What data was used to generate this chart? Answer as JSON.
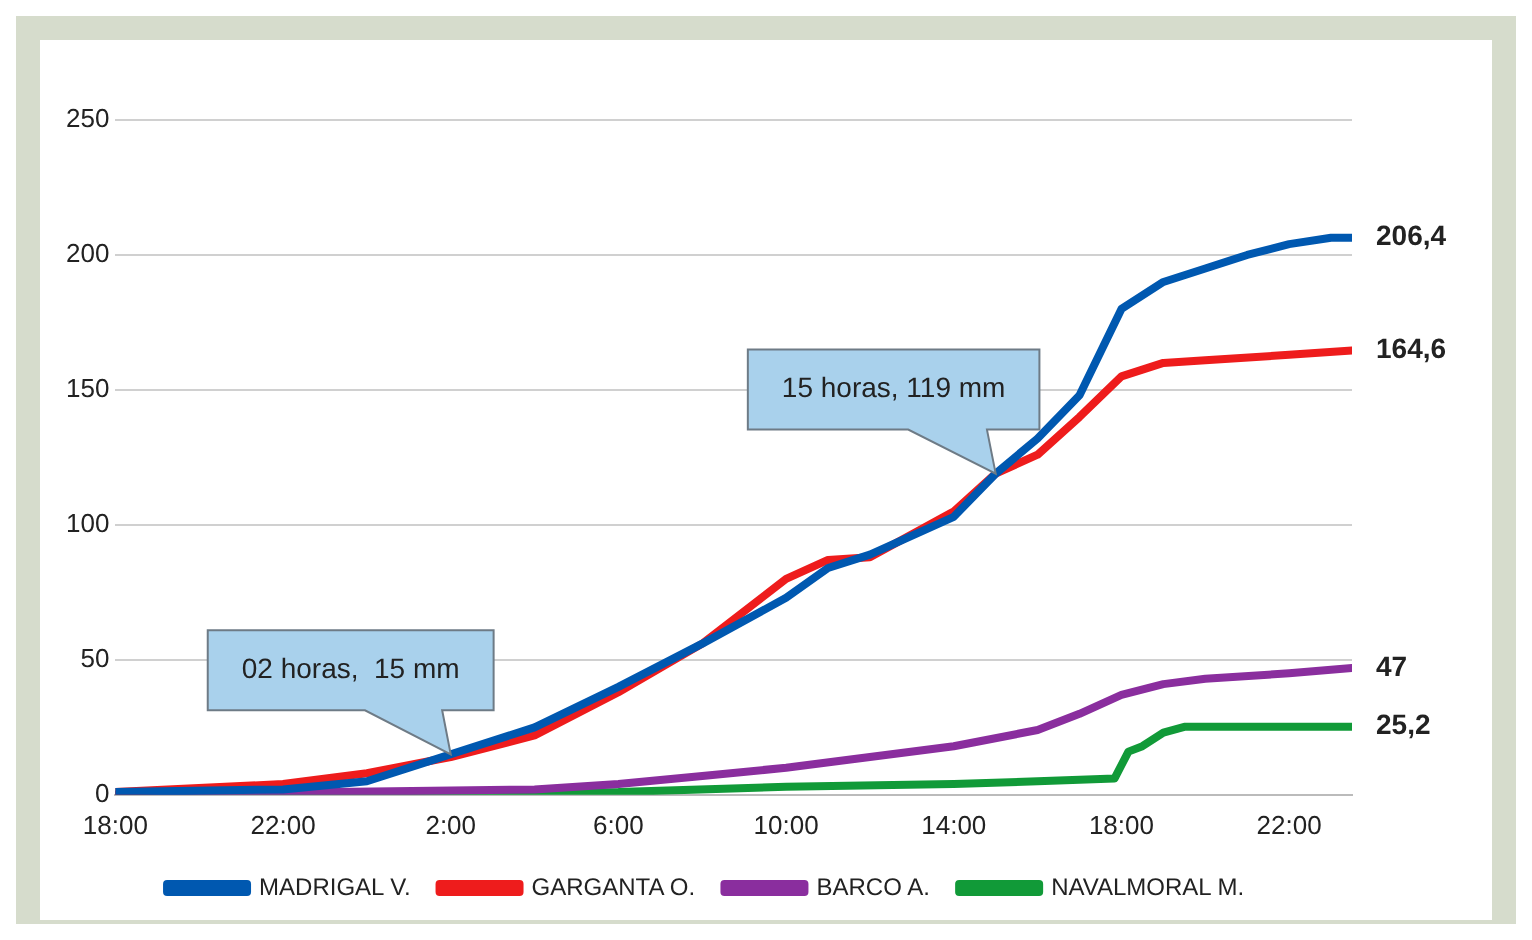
{
  "chart_data": {
    "type": "line",
    "xlim": [
      "--01-01T18:00",
      "--01-02T23:30"
    ],
    "ylim": [
      0,
      250
    ],
    "xticks": [
      {
        "value": "--01-01T18:00",
        "label": "18:00"
      },
      {
        "value": "--01-01T22:00",
        "label": "22:00"
      },
      {
        "value": "--01-02T02:00",
        "label": "2:00"
      },
      {
        "value": "--01-02T06:00",
        "label": "6:00"
      },
      {
        "value": "--01-02T10:00",
        "label": "10:00"
      },
      {
        "value": "--01-02T14:00",
        "label": "14:00"
      },
      {
        "value": "--01-02T18:00",
        "label": "18:00"
      },
      {
        "value": "--01-02T22:00",
        "label": "22:00"
      }
    ],
    "yticks": [
      0,
      50,
      100,
      150,
      200,
      250
    ],
    "grid": "y",
    "legend": "bottom",
    "marker": "none",
    "line_style": "solid",
    "annotations": [
      {
        "text": "02 horas,  15 mm",
        "x": "--01-02T02:00",
        "y": 15
      },
      {
        "text": "15 horas, 119 mm",
        "x": "--01-02T15:00",
        "y": 119
      }
    ],
    "series": [
      {
        "name": "MADRIGAL V.",
        "color": "#0058b0",
        "x": [
          "--01-01T18:00",
          "--01-01T22:00",
          "--01-02T00:00",
          "--01-02T02:00",
          "--01-02T04:00",
          "--01-02T06:00",
          "--01-02T08:00",
          "--01-02T10:00",
          "--01-02T11:00",
          "--01-02T12:00",
          "--01-02T14:00",
          "--01-02T15:00",
          "--01-02T16:00",
          "--01-02T17:00",
          "--01-02T18:00",
          "--01-02T19:00",
          "--01-02T20:00",
          "--01-02T21:00",
          "--01-02T22:00",
          "--01-02T23:00",
          "--01-02T23:30"
        ],
        "values": [
          1,
          2,
          5,
          15,
          25,
          40,
          56,
          73,
          84,
          89,
          103,
          119,
          132,
          148,
          180,
          190,
          195,
          200,
          204,
          206.4,
          206.4
        ],
        "value_labels": [
          null,
          null,
          null,
          null,
          null,
          null,
          null,
          null,
          null,
          null,
          null,
          null,
          null,
          null,
          null,
          null,
          null,
          null,
          null,
          null,
          "206,4"
        ]
      },
      {
        "name": "GARGANTA O.",
        "color": "#ee1c1c",
        "x": [
          "--01-01T18:00",
          "--01-01T22:00",
          "--01-02T00:00",
          "--01-02T02:00",
          "--01-02T04:00",
          "--01-02T06:00",
          "--01-02T08:00",
          "--01-02T10:00",
          "--01-02T11:00",
          "--01-02T12:00",
          "--01-02T14:00",
          "--01-02T15:00",
          "--01-02T16:00",
          "--01-02T17:00",
          "--01-02T18:00",
          "--01-02T19:00",
          "--01-02T20:00",
          "--01-02T22:00",
          "--01-02T23:30"
        ],
        "values": [
          1,
          4,
          8,
          14,
          22,
          38,
          56,
          80,
          87,
          88,
          105,
          119,
          126,
          140,
          155,
          160,
          161,
          163,
          164.6
        ],
        "value_labels": [
          null,
          null,
          null,
          null,
          null,
          null,
          null,
          null,
          null,
          null,
          null,
          null,
          null,
          null,
          null,
          null,
          null,
          null,
          "164,6"
        ]
      },
      {
        "name": "BARCO A.",
        "color": "#8a2e9e",
        "x": [
          "--01-01T18:00",
          "--01-02T04:00",
          "--01-02T06:00",
          "--01-02T08:00",
          "--01-02T10:00",
          "--01-02T12:00",
          "--01-02T14:00",
          "--01-02T16:00",
          "--01-02T17:00",
          "--01-02T18:00",
          "--01-02T19:00",
          "--01-02T20:00",
          "--01-02T22:00",
          "--01-02T23:30"
        ],
        "values": [
          0,
          2,
          4,
          7,
          10,
          14,
          18,
          24,
          30,
          37,
          41,
          43,
          45,
          47
        ],
        "value_labels": [
          null,
          null,
          null,
          null,
          null,
          null,
          null,
          null,
          null,
          null,
          null,
          null,
          null,
          "47"
        ]
      },
      {
        "name": "NAVALMORAL M.",
        "color": "#119a38",
        "x": [
          "--01-01T18:00",
          "--01-02T06:00",
          "--01-02T10:00",
          "--01-02T14:00",
          "--01-02T16:00",
          "--01-02T17:50",
          "--01-02T18:10",
          "--01-02T18:30",
          "--01-02T19:00",
          "--01-02T19:30",
          "--01-02T23:30"
        ],
        "values": [
          0,
          1,
          3,
          4,
          5,
          6,
          16,
          18,
          23,
          25.2,
          25.2
        ],
        "value_labels": [
          null,
          null,
          null,
          null,
          null,
          null,
          null,
          null,
          null,
          null,
          "25,2"
        ]
      }
    ]
  }
}
